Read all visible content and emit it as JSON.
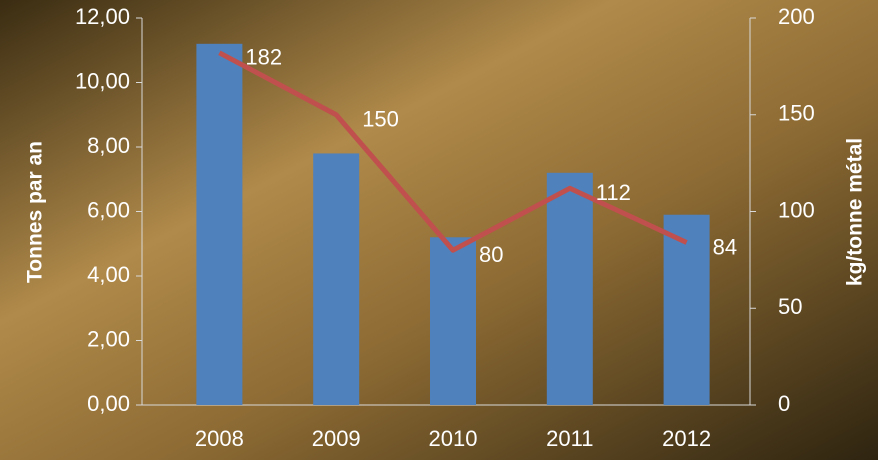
{
  "chart_data": {
    "type": "bar_line",
    "categories": [
      "2008",
      "2009",
      "2010",
      "2011",
      "2012"
    ],
    "series": [
      {
        "name": "Tonnes par an",
        "type": "bar",
        "color": "#4f81bd",
        "values": [
          11.2,
          7.8,
          5.2,
          7.2,
          5.9
        ]
      },
      {
        "name": "kg/tonne métal",
        "type": "line",
        "axis": "y2",
        "color": "#c0504d",
        "values": [
          182,
          150,
          80,
          112,
          84
        ]
      }
    ],
    "y_label": "Tonnes par an",
    "y2_label": "kg/tonne métal",
    "ylim": [
      0,
      12
    ],
    "yticks": [
      {
        "value": 0,
        "label": "0,00"
      },
      {
        "value": 2,
        "label": "2,00"
      },
      {
        "value": 4,
        "label": "4,00"
      },
      {
        "value": 6,
        "label": "6,00"
      },
      {
        "value": 8,
        "label": "8,00"
      },
      {
        "value": 10,
        "label": "10,00"
      },
      {
        "value": 12,
        "label": "12,00"
      }
    ],
    "y2lim": [
      0,
      200
    ],
    "y2ticks": [
      0,
      50,
      100,
      150,
      200
    ]
  }
}
